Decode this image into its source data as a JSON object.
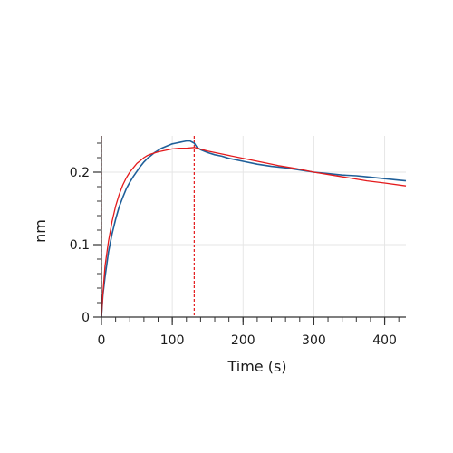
{
  "chart_data": {
    "type": "line",
    "title": "",
    "xlabel": "Time (s)",
    "ylabel": "nm",
    "xlim": [
      0,
      430
    ],
    "ylim": [
      0,
      0.25
    ],
    "x_ticks": [
      0,
      100,
      200,
      300,
      400
    ],
    "x_tick_labels": [
      "0",
      "100",
      "200",
      "300",
      "400"
    ],
    "y_ticks": [
      0,
      0.1,
      0.2
    ],
    "y_tick_labels": [
      "0",
      "0.1",
      "0.2"
    ],
    "grid": true,
    "legend": "none",
    "markers": [
      {
        "x": 0,
        "style": "dashed",
        "color": "#e41a1c"
      },
      {
        "x": 131,
        "style": "dashed",
        "color": "#e41a1c"
      }
    ],
    "series": [
      {
        "color": "#1f5f99",
        "points": [
          [
            0,
            0.0
          ],
          [
            2,
            0.03
          ],
          [
            5,
            0.055
          ],
          [
            10,
            0.09
          ],
          [
            15,
            0.115
          ],
          [
            20,
            0.135
          ],
          [
            25,
            0.152
          ],
          [
            30,
            0.165
          ],
          [
            35,
            0.177
          ],
          [
            40,
            0.186
          ],
          [
            45,
            0.194
          ],
          [
            50,
            0.201
          ],
          [
            55,
            0.208
          ],
          [
            60,
            0.214
          ],
          [
            65,
            0.219
          ],
          [
            70,
            0.223
          ],
          [
            75,
            0.227
          ],
          [
            80,
            0.23
          ],
          [
            85,
            0.233
          ],
          [
            90,
            0.235
          ],
          [
            95,
            0.237
          ],
          [
            100,
            0.239
          ],
          [
            105,
            0.24
          ],
          [
            110,
            0.241
          ],
          [
            115,
            0.242
          ],
          [
            120,
            0.243
          ],
          [
            125,
            0.243
          ],
          [
            131,
            0.24
          ],
          [
            135,
            0.234
          ],
          [
            140,
            0.231
          ],
          [
            150,
            0.227
          ],
          [
            160,
            0.224
          ],
          [
            170,
            0.222
          ],
          [
            180,
            0.219
          ],
          [
            200,
            0.215
          ],
          [
            220,
            0.211
          ],
          [
            240,
            0.208
          ],
          [
            260,
            0.206
          ],
          [
            280,
            0.203
          ],
          [
            300,
            0.2
          ],
          [
            320,
            0.198
          ],
          [
            340,
            0.196
          ],
          [
            360,
            0.195
          ],
          [
            380,
            0.193
          ],
          [
            400,
            0.191
          ],
          [
            420,
            0.189
          ],
          [
            430,
            0.188
          ]
        ]
      },
      {
        "color": "#e41a1c",
        "points": [
          [
            0,
            0.0
          ],
          [
            2,
            0.032
          ],
          [
            5,
            0.07
          ],
          [
            10,
            0.105
          ],
          [
            15,
            0.132
          ],
          [
            20,
            0.153
          ],
          [
            25,
            0.169
          ],
          [
            30,
            0.182
          ],
          [
            35,
            0.192
          ],
          [
            40,
            0.2
          ],
          [
            45,
            0.206
          ],
          [
            50,
            0.212
          ],
          [
            55,
            0.216
          ],
          [
            60,
            0.22
          ],
          [
            65,
            0.223
          ],
          [
            70,
            0.225
          ],
          [
            80,
            0.228
          ],
          [
            90,
            0.23
          ],
          [
            100,
            0.232
          ],
          [
            110,
            0.233
          ],
          [
            120,
            0.233
          ],
          [
            131,
            0.234
          ],
          [
            150,
            0.229
          ],
          [
            175,
            0.224
          ],
          [
            200,
            0.219
          ],
          [
            225,
            0.214
          ],
          [
            250,
            0.209
          ],
          [
            275,
            0.205
          ],
          [
            300,
            0.2
          ],
          [
            325,
            0.196
          ],
          [
            350,
            0.192
          ],
          [
            375,
            0.188
          ],
          [
            400,
            0.185
          ],
          [
            430,
            0.181
          ]
        ]
      }
    ]
  }
}
